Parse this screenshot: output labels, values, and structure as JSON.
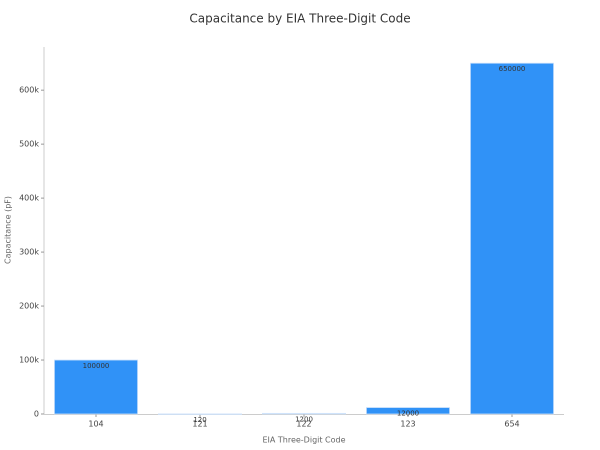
{
  "chart_data": {
    "type": "bar",
    "title": "Capacitance by EIA Three-Digit Code",
    "x_label": "EIA Three-Digit Code",
    "y_label": "Capacitance (pF)",
    "categories": [
      "104",
      "121",
      "122",
      "123",
      "654"
    ],
    "values": [
      100000,
      120,
      1200,
      12000,
      650000
    ],
    "color": "#3092f7",
    "ylim": [
      0,
      680000
    ],
    "yticks": [
      0,
      {
        "value": 100000,
        "label": "100k"
      },
      {
        "value": 200000,
        "label": "200k"
      },
      {
        "value": 300000,
        "label": "300k"
      },
      {
        "value": 400000,
        "label": "400k"
      },
      {
        "value": 500000,
        "label": "500k"
      },
      {
        "value": 600000,
        "label": "600k"
      }
    ],
    "grid": false
  }
}
